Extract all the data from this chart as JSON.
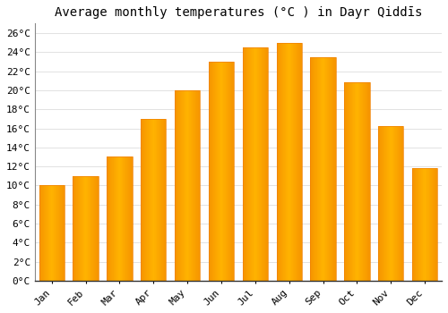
{
  "title": "Average monthly temperatures (°C ) in Dayr Qiddīs",
  "months": [
    "Jan",
    "Feb",
    "Mar",
    "Apr",
    "May",
    "Jun",
    "Jul",
    "Aug",
    "Sep",
    "Oct",
    "Nov",
    "Dec"
  ],
  "values": [
    10.0,
    11.0,
    13.0,
    17.0,
    20.0,
    23.0,
    24.5,
    25.0,
    23.5,
    20.8,
    16.2,
    11.8
  ],
  "bar_color_center": "#FFB300",
  "bar_color_edge": "#F08000",
  "background_color": "#FFFFFF",
  "grid_color": "#DDDDDD",
  "ylim": [
    0,
    27
  ],
  "yticks": [
    0,
    2,
    4,
    6,
    8,
    10,
    12,
    14,
    16,
    18,
    20,
    22,
    24,
    26
  ],
  "ytick_labels": [
    "0°C",
    "2°C",
    "4°C",
    "6°C",
    "8°C",
    "10°C",
    "12°C",
    "14°C",
    "16°C",
    "18°C",
    "20°C",
    "22°C",
    "24°C",
    "26°C"
  ],
  "title_fontsize": 10,
  "tick_fontsize": 8,
  "font_family": "monospace",
  "bar_width": 0.75
}
